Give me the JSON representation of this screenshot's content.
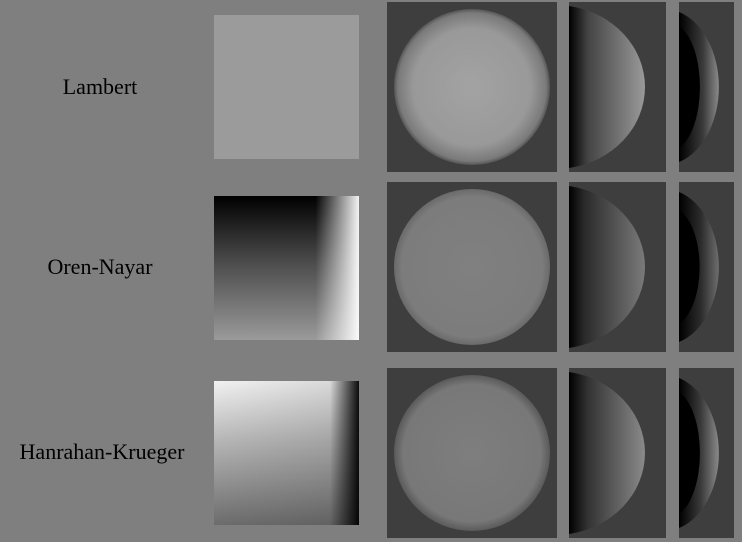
{
  "rows": [
    {
      "label": "Lambert"
    },
    {
      "label": "Oren-Nayar"
    },
    {
      "label": "Hanrahan-Krueger"
    }
  ],
  "colors": {
    "page_background": "#7f7f7f",
    "panel_background": "#3e3e3e"
  }
}
